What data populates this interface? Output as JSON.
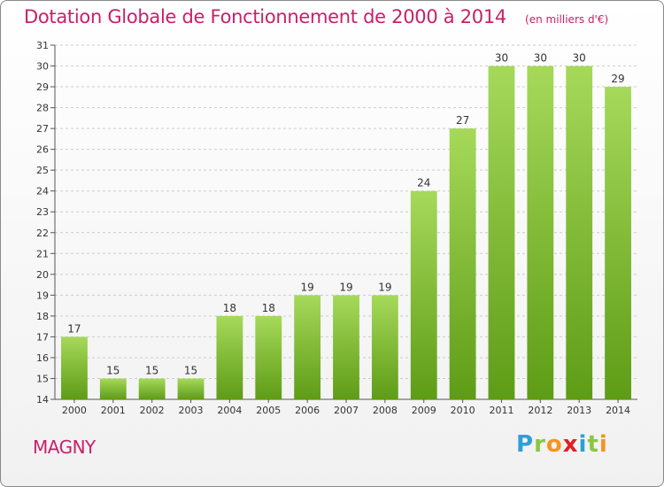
{
  "header": {
    "title": "Dotation Globale de Fonctionnement de 2000 à 2014",
    "subtitle": "(en milliers d'€)"
  },
  "footer": {
    "commune": "MAGNY",
    "brand_letters": [
      "P",
      "r",
      "o",
      "x",
      "i",
      "t",
      "i"
    ],
    "brand_colors": [
      "#2aa0d8",
      "#8cc63f",
      "#f7931e",
      "#e31e24",
      "#2aa0d8",
      "#8cc63f",
      "#f7931e"
    ]
  },
  "colors": {
    "bar_light": "#a6d95a",
    "bar_dark": "#5e9c16",
    "title": "#c8206a",
    "grid": "#cccccc"
  },
  "chart_data": {
    "type": "bar",
    "categories": [
      "2000",
      "2001",
      "2002",
      "2003",
      "2004",
      "2005",
      "2006",
      "2007",
      "2008",
      "2009",
      "2010",
      "2011",
      "2012",
      "2013",
      "2014"
    ],
    "values": [
      17,
      15,
      15,
      15,
      18,
      18,
      19,
      19,
      19,
      24,
      27,
      30,
      30,
      30,
      29
    ],
    "title": "Dotation Globale de Fonctionnement de 2000 à 2014",
    "subtitle": "(en milliers d'€)",
    "xlabel": "",
    "ylabel": "",
    "ylim": [
      14,
      31
    ],
    "yticks": [
      14,
      15,
      16,
      17,
      18,
      19,
      20,
      21,
      22,
      23,
      24,
      25,
      26,
      27,
      28,
      29,
      30,
      31
    ],
    "grid": true,
    "legend": "none"
  }
}
